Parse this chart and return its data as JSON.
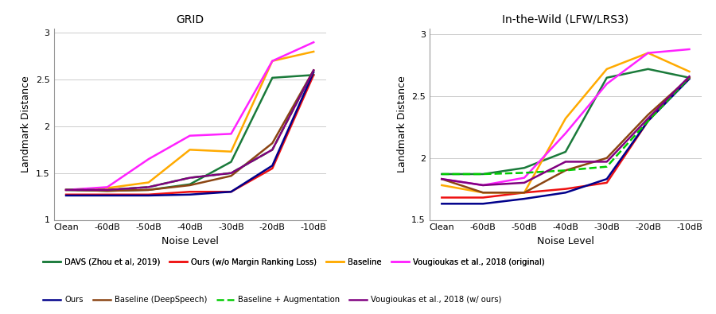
{
  "x_labels": [
    "Clean",
    "-60dB",
    "-50dB",
    "-40dB",
    "-30dB",
    "-20dB",
    "-10dB"
  ],
  "title_left": "GRID",
  "title_right": "In-the-Wild (LFW/LRS3)",
  "xlabel": "Noise Level",
  "ylabel": "Landmark Distance",
  "grid1": {
    "DAVS (Zhou et al, 2019)": {
      "color": "#1a7a3a",
      "lw": 1.8,
      "ls": "-",
      "values": [
        1.32,
        1.31,
        1.32,
        1.38,
        1.62,
        2.52,
        2.55
      ]
    },
    "Ours (w/o Margin Ranking Loss)": {
      "color": "#ee1111",
      "lw": 1.8,
      "ls": "-",
      "values": [
        1.27,
        1.27,
        1.27,
        1.3,
        1.3,
        1.55,
        2.55
      ]
    },
    "Baseline": {
      "color": "#ffaa00",
      "lw": 1.8,
      "ls": "-",
      "values": [
        1.32,
        1.34,
        1.4,
        1.75,
        1.73,
        2.7,
        2.8
      ]
    },
    "Vougioukas et al., 2018 (original)": {
      "color": "#ff22ff",
      "lw": 1.8,
      "ls": "-",
      "values": [
        1.32,
        1.35,
        1.65,
        1.9,
        1.92,
        2.7,
        2.9
      ]
    },
    "Ours": {
      "color": "#00008b",
      "lw": 1.8,
      "ls": "-",
      "values": [
        1.26,
        1.26,
        1.26,
        1.27,
        1.3,
        1.58,
        2.58
      ]
    },
    "Baseline (DeepSpeech)": {
      "color": "#8B4513",
      "lw": 1.8,
      "ls": "-",
      "values": [
        1.32,
        1.31,
        1.32,
        1.37,
        1.47,
        1.82,
        2.6
      ]
    },
    "Baseline + Augmentation": {
      "color": "#00cc00",
      "lw": 1.8,
      "ls": "--",
      "values": [
        1.32,
        1.32,
        1.35,
        1.45,
        1.5,
        1.75,
        2.6
      ]
    },
    "Vougioukas et al., 2018 (w/ ours)": {
      "color": "#800080",
      "lw": 1.8,
      "ls": "-",
      "values": [
        1.32,
        1.32,
        1.35,
        1.45,
        1.5,
        1.75,
        2.6
      ]
    }
  },
  "grid2": {
    "DAVS (Zhou et al, 2019)": {
      "color": "#1a7a3a",
      "lw": 1.8,
      "ls": "-",
      "values": [
        1.87,
        1.87,
        1.92,
        2.05,
        2.65,
        2.72,
        2.65
      ]
    },
    "Ours (w/o Margin Ranking Loss)": {
      "color": "#ee1111",
      "lw": 1.8,
      "ls": "-",
      "values": [
        1.68,
        1.68,
        1.72,
        1.75,
        1.8,
        2.3,
        2.65
      ]
    },
    "Baseline": {
      "color": "#ffaa00",
      "lw": 1.8,
      "ls": "-",
      "values": [
        1.78,
        1.72,
        1.72,
        2.32,
        2.72,
        2.85,
        2.7
      ]
    },
    "Vougioukas et al., 2018 (original)": {
      "color": "#ff22ff",
      "lw": 1.8,
      "ls": "-",
      "values": [
        1.83,
        1.78,
        1.84,
        2.2,
        2.6,
        2.85,
        2.88
      ]
    },
    "Ours": {
      "color": "#00008b",
      "lw": 1.8,
      "ls": "-",
      "values": [
        1.63,
        1.63,
        1.67,
        1.72,
        1.83,
        2.3,
        2.64
      ]
    },
    "Baseline (DeepSpeech)": {
      "color": "#8B4513",
      "lw": 1.8,
      "ls": "-",
      "values": [
        1.83,
        1.72,
        1.72,
        1.9,
        2.0,
        2.35,
        2.65
      ]
    },
    "Baseline + Augmentation": {
      "color": "#00cc00",
      "lw": 1.8,
      "ls": "--",
      "values": [
        1.87,
        1.87,
        1.88,
        1.9,
        1.93,
        2.3,
        2.65
      ]
    },
    "Vougioukas et al., 2018 (w/ ours)": {
      "color": "#800080",
      "lw": 1.8,
      "ls": "-",
      "values": [
        1.83,
        1.78,
        1.8,
        1.97,
        1.97,
        2.32,
        2.66
      ]
    }
  },
  "ylim1": [
    1.0,
    3.05
  ],
  "ylim2": [
    1.5,
    3.05
  ],
  "yticks1": [
    1.0,
    1.5,
    2.0,
    2.5,
    3.0
  ],
  "yticks2": [
    1.5,
    2.0,
    2.5,
    3.0
  ],
  "legend_order": [
    "DAVS (Zhou et al, 2019)",
    "Ours (w/o Margin Ranking Loss)",
    "Baseline",
    "Vougioukas et al., 2018 (original)",
    "Ours",
    "Baseline (DeepSpeech)",
    "Baseline + Augmentation",
    "Vougioukas et al., 2018 (w/ ours)"
  ]
}
